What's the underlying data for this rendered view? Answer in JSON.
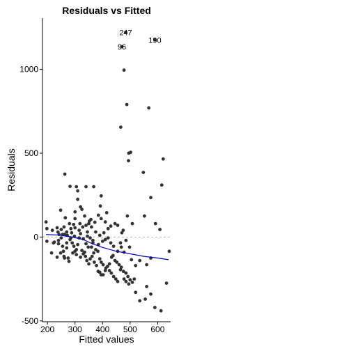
{
  "chart_data": {
    "type": "scatter",
    "title": "Residuals vs Fitted",
    "xlabel": "Fitted values",
    "ylabel": "Residuals",
    "xlim": [
      182,
      647
    ],
    "ylim": [
      -505,
      1305
    ],
    "xticks": [
      200,
      300,
      400,
      500,
      600
    ],
    "yticks": [
      -500,
      0,
      500,
      1000
    ],
    "reference_line_y": 0,
    "colors": {
      "points": "#333333",
      "smooth": "#0000CC",
      "reference": "#BBBBBB"
    },
    "labeled_points": [
      {
        "label": "247",
        "x": 484,
        "y": 1220
      },
      {
        "label": "96",
        "x": 470,
        "y": 1135
      },
      {
        "label": "190",
        "x": 590,
        "y": 1175
      }
    ],
    "points": [
      [
        478,
        995
      ],
      [
        488,
        790
      ],
      [
        568,
        770
      ],
      [
        466,
        655
      ],
      [
        502,
        505
      ],
      [
        495,
        500
      ],
      [
        620,
        465
      ],
      [
        494,
        455
      ],
      [
        548,
        385
      ],
      [
        575,
        235
      ],
      [
        615,
        310
      ],
      [
        263,
        375
      ],
      [
        282,
        302
      ],
      [
        305,
        300
      ],
      [
        310,
        275
      ],
      [
        395,
        245
      ],
      [
        310,
        225
      ],
      [
        340,
        300
      ],
      [
        368,
        300
      ],
      [
        392,
        185
      ],
      [
        248,
        160
      ],
      [
        320,
        180
      ],
      [
        325,
        165
      ],
      [
        300,
        150
      ],
      [
        335,
        125
      ],
      [
        385,
        130
      ],
      [
        265,
        115
      ],
      [
        300,
        110
      ],
      [
        415,
        145
      ],
      [
        395,
        110
      ],
      [
        410,
        90
      ],
      [
        358,
        105
      ],
      [
        372,
        88
      ],
      [
        350,
        80
      ],
      [
        340,
        70
      ],
      [
        360,
        60
      ],
      [
        280,
        80
      ],
      [
        295,
        75
      ],
      [
        260,
        60
      ],
      [
        235,
        55
      ],
      [
        250,
        45
      ],
      [
        270,
        30
      ],
      [
        288,
        25
      ],
      [
        300,
        55
      ],
      [
        315,
        40
      ],
      [
        320,
        20
      ],
      [
        345,
        30
      ],
      [
        375,
        30
      ],
      [
        390,
        10
      ],
      [
        405,
        25
      ],
      [
        420,
        50
      ],
      [
        430,
        65
      ],
      [
        445,
        80
      ],
      [
        455,
        70
      ],
      [
        475,
        40
      ],
      [
        490,
        125
      ],
      [
        508,
        80
      ],
      [
        552,
        125
      ],
      [
        592,
        80
      ],
      [
        608,
        45
      ],
      [
        195,
        90
      ],
      [
        198,
        50
      ],
      [
        198,
        -25
      ],
      [
        218,
        40
      ],
      [
        222,
        -35
      ],
      [
        238,
        30
      ],
      [
        242,
        15
      ],
      [
        255,
        -55
      ],
      [
        258,
        -85
      ],
      [
        260,
        -115
      ],
      [
        270,
        -65
      ],
      [
        275,
        -125
      ],
      [
        282,
        -15
      ],
      [
        290,
        -35
      ],
      [
        296,
        -55
      ],
      [
        305,
        -75
      ],
      [
        310,
        -45
      ],
      [
        325,
        -80
      ],
      [
        330,
        -100
      ],
      [
        338,
        -115
      ],
      [
        343,
        -140
      ],
      [
        350,
        -160
      ],
      [
        355,
        -130
      ],
      [
        362,
        -115
      ],
      [
        368,
        -95
      ],
      [
        375,
        -75
      ],
      [
        383,
        -85
      ],
      [
        390,
        -130
      ],
      [
        395,
        -150
      ],
      [
        402,
        -165
      ],
      [
        410,
        -200
      ],
      [
        418,
        -175
      ],
      [
        425,
        -160
      ],
      [
        433,
        -120
      ],
      [
        438,
        -110
      ],
      [
        445,
        -140
      ],
      [
        452,
        -150
      ],
      [
        460,
        -165
      ],
      [
        468,
        -180
      ],
      [
        476,
        -205
      ],
      [
        485,
        -215
      ],
      [
        492,
        -235
      ],
      [
        500,
        -255
      ],
      [
        508,
        -270
      ],
      [
        515,
        -250
      ],
      [
        390,
        -210
      ],
      [
        402,
        -225
      ],
      [
        412,
        -185
      ],
      [
        425,
        -200
      ],
      [
        432,
        -215
      ],
      [
        440,
        -235
      ],
      [
        448,
        -250
      ],
      [
        455,
        -265
      ],
      [
        465,
        -195
      ],
      [
        478,
        -250
      ],
      [
        485,
        -265
      ],
      [
        495,
        -280
      ],
      [
        520,
        -330
      ],
      [
        535,
        -380
      ],
      [
        555,
        -370
      ],
      [
        560,
        -295
      ],
      [
        575,
        -340
      ],
      [
        590,
        -420
      ],
      [
        612,
        -440
      ],
      [
        632,
        -275
      ],
      [
        642,
        -85
      ],
      [
        575,
        -125
      ],
      [
        560,
        -165
      ],
      [
        535,
        -140
      ],
      [
        520,
        -170
      ],
      [
        505,
        -135
      ],
      [
        498,
        -60
      ],
      [
        478,
        -90
      ],
      [
        468,
        -60
      ],
      [
        455,
        -85
      ],
      [
        440,
        -55
      ],
      [
        430,
        -35
      ],
      [
        420,
        -5
      ],
      [
        410,
        -15
      ],
      [
        400,
        -25
      ],
      [
        385,
        -45
      ],
      [
        365,
        -20
      ],
      [
        355,
        -5
      ],
      [
        345,
        5
      ],
      [
        330,
        -10
      ],
      [
        315,
        -5
      ],
      [
        298,
        5
      ],
      [
        285,
        -5
      ],
      [
        272,
        10
      ],
      [
        262,
        15
      ],
      [
        250,
        -5
      ],
      [
        240,
        -20
      ],
      [
        225,
        -30
      ],
      [
        215,
        -95
      ],
      [
        235,
        -120
      ],
      [
        248,
        -95
      ],
      [
        262,
        -125
      ],
      [
        278,
        -145
      ],
      [
        292,
        -95
      ],
      [
        305,
        -105
      ],
      [
        320,
        -120
      ],
      [
        335,
        -90
      ],
      [
        340,
        -40
      ],
      [
        360,
        -60
      ],
      [
        370,
        -150
      ],
      [
        378,
        -170
      ],
      [
        384,
        -205
      ],
      [
        395,
        -225
      ],
      [
        465,
        -35
      ],
      [
        485,
        -20
      ],
      [
        470,
        25
      ],
      [
        240,
        -40
      ],
      [
        255,
        15
      ],
      [
        270,
        -35
      ],
      [
        285,
        50
      ],
      [
        300,
        -85
      ],
      [
        318,
        80
      ],
      [
        328,
        60
      ],
      [
        348,
        -60
      ],
      [
        352,
        95
      ],
      [
        365,
        -35
      ]
    ],
    "smooth_line": [
      [
        195,
        15
      ],
      [
        240,
        12
      ],
      [
        290,
        0
      ],
      [
        330,
        -15
      ],
      [
        360,
        -38
      ],
      [
        400,
        -62
      ],
      [
        450,
        -85
      ],
      [
        500,
        -100
      ],
      [
        550,
        -115
      ],
      [
        600,
        -125
      ],
      [
        640,
        -135
      ]
    ]
  }
}
